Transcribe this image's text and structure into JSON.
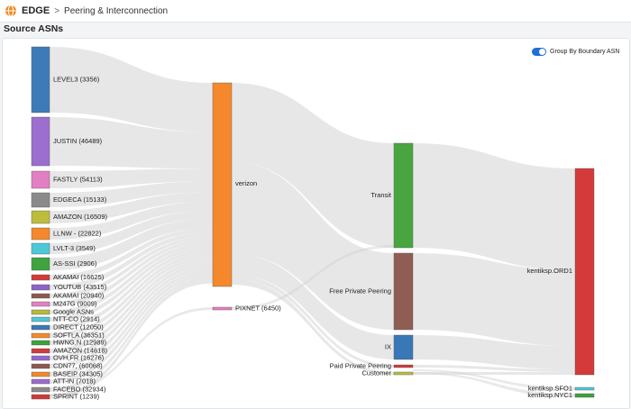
{
  "header": {
    "app_name": "EDGE",
    "breadcrumb_separator": ">",
    "breadcrumb": "Peering & Interconnection",
    "logo_icon": "globe-icon",
    "accent_color": "#f08a24"
  },
  "section": {
    "title": "Source ASNs"
  },
  "toggle": {
    "label": "Group By Boundary ASN",
    "on": true,
    "color": "#1f6fd6"
  },
  "sankey": {
    "source_nodes": [
      {
        "label": "LEVEL3 (3356)",
        "color": "#3d7bb8"
      },
      {
        "label": "JUSTIN (46489)",
        "color": "#9b6ecf"
      },
      {
        "label": "FASTLY (54113)",
        "color": "#e27fc2"
      },
      {
        "label": "EDGECA (15133)",
        "color": "#8a8a8a"
      },
      {
        "label": "AMAZON (16509)",
        "color": "#bcbd3b"
      },
      {
        "label": "LLNW - (22822)",
        "color": "#f5882c"
      },
      {
        "label": "LVLT-3 (3549)",
        "color": "#4dc8d8"
      },
      {
        "label": "AS-SSI (2906)",
        "color": "#3fa33f"
      },
      {
        "label": "AKAMAI (16625)",
        "color": "#d63a3a"
      },
      {
        "label": "YOUTUB (43515)",
        "color": "#8e63c7"
      },
      {
        "label": "AKAMAI (20940)",
        "color": "#8c5a4c"
      },
      {
        "label": "M247G (9009)",
        "color": "#e281c1"
      },
      {
        "label": "Google ASNs",
        "color": "#b8b83c"
      },
      {
        "label": "NTT-CO (2914)",
        "color": "#4fc7d7"
      },
      {
        "label": "DIRECT (12050)",
        "color": "#3b78b6"
      },
      {
        "label": "SOFTLA (36351)",
        "color": "#f28a2c"
      },
      {
        "label": "HWNG,N (12989)",
        "color": "#3aa23a"
      },
      {
        "label": "AMAZON (14618)",
        "color": "#d43a3a"
      },
      {
        "label": "OVH,FR (16276)",
        "color": "#9568cc"
      },
      {
        "label": "CDN77, (60068)",
        "color": "#8c5a4c"
      },
      {
        "label": "BASEIP (34305)",
        "color": "#f0892b"
      },
      {
        "label": "ATT-IN (7018)",
        "color": "#9a6bcd"
      },
      {
        "label": "FACEBO (32934)",
        "color": "#8a8a8a"
      },
      {
        "label": "SPRINT (1239)",
        "color": "#d13838"
      }
    ],
    "middle_nodes": [
      {
        "label": "verizon",
        "color": "#f5882c"
      },
      {
        "label": "PIXNET (6450)",
        "color": "#e27fc2"
      }
    ],
    "connectivity_nodes": [
      {
        "label": "Transit",
        "color": "#48a540"
      },
      {
        "label": "Free Private Peering",
        "color": "#8f5d52"
      },
      {
        "label": "IX",
        "color": "#3a77b6"
      },
      {
        "label": "Paid Private Peering",
        "color": "#d23a3a"
      },
      {
        "label": "Customer",
        "color": "#bcbd3b"
      }
    ],
    "site_nodes": [
      {
        "label": "kentiksp.ORD1",
        "color": "#d43a3a"
      },
      {
        "label": "kentiksp.SFO1",
        "color": "#4fc7d7"
      },
      {
        "label": "kentiksp.NYC1",
        "color": "#3aa23a"
      }
    ],
    "link_color": "#d4d4d4"
  }
}
